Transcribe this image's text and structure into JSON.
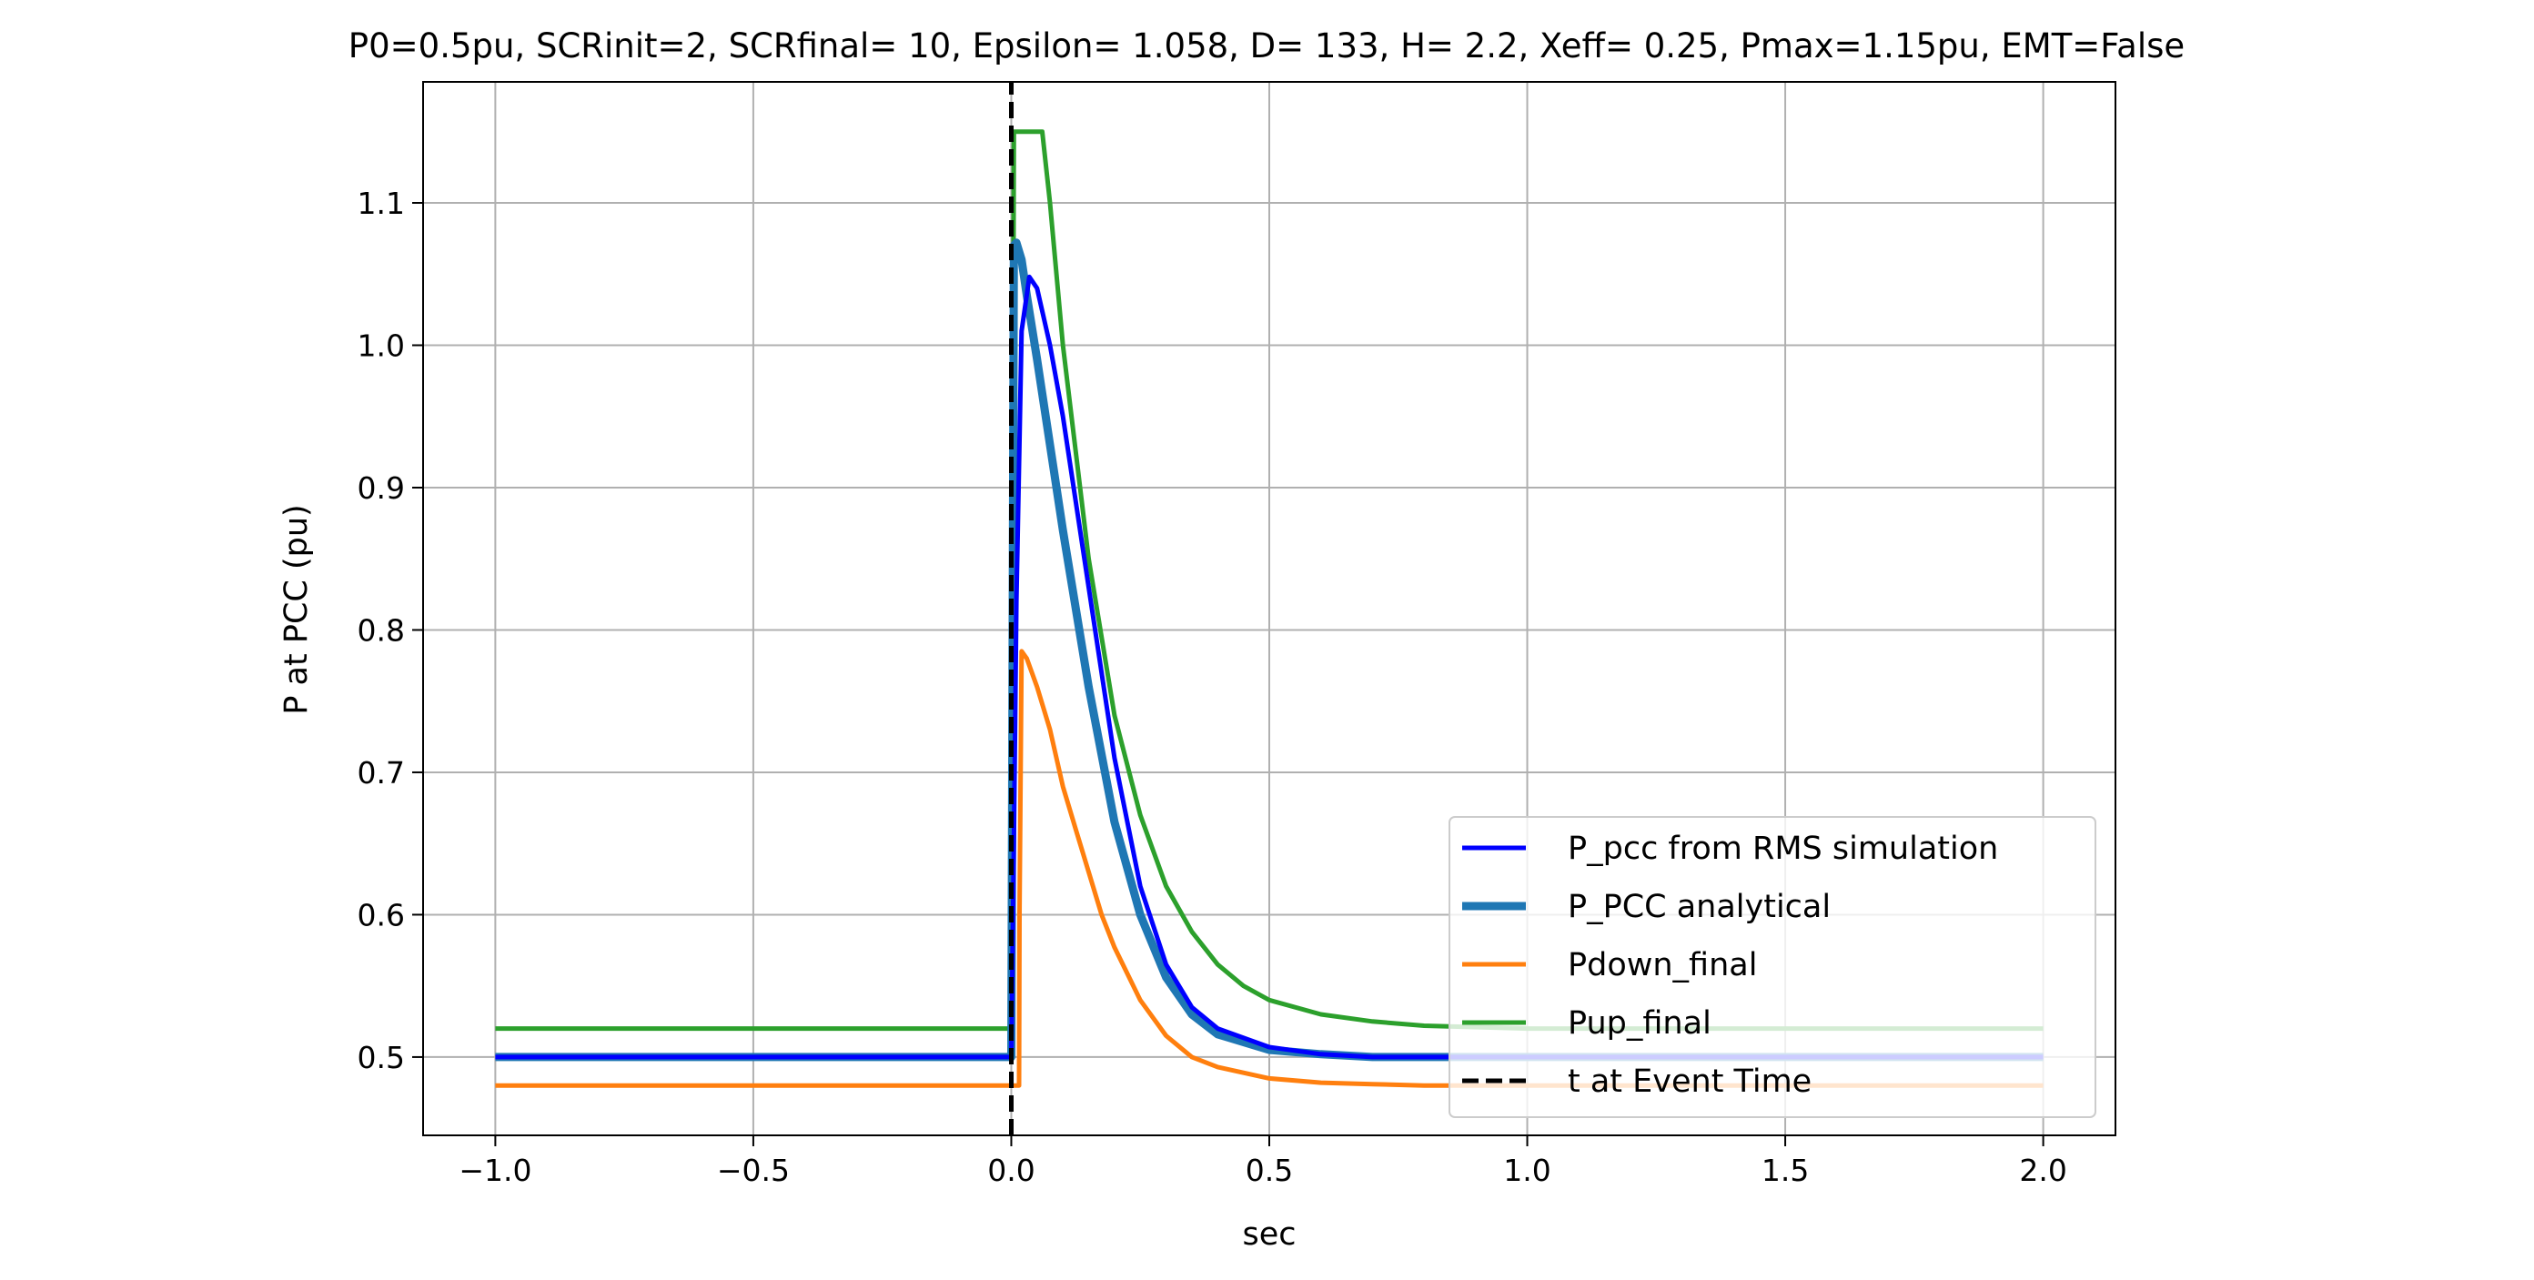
{
  "chart_data": {
    "type": "line",
    "title": "P0=0.5pu, SCRinit=2, SCRfinal= 10, Epsilon= 1.058, D= 133, H= 2.2, Xeff= 0.25, Pmax=1.15pu, EMT=False",
    "xlabel": "sec",
    "ylabel": "P at PCC (pu)",
    "xlim": [
      -1.14,
      2.14
    ],
    "ylim": [
      0.445,
      1.185
    ],
    "xticks": [
      -1.0,
      -0.5,
      0.0,
      0.5,
      1.0,
      1.5,
      2.0
    ],
    "xtick_labels": [
      "−1.0",
      "−0.5",
      "0.0",
      "0.5",
      "1.0",
      "1.5",
      "2.0"
    ],
    "yticks": [
      0.5,
      0.6,
      0.7,
      0.8,
      0.9,
      1.0,
      1.1
    ],
    "ytick_labels": [
      "0.5",
      "0.6",
      "0.7",
      "0.8",
      "0.9",
      "1.0",
      "1.1"
    ],
    "grid": true,
    "legend_position": "lower right",
    "series": [
      {
        "name": "P_pcc from RMS simulation",
        "color": "#0000ff",
        "style": "solid",
        "x": [
          -1.0,
          -0.001,
          0.0,
          0.005,
          0.01,
          0.02,
          0.035,
          0.05,
          0.075,
          0.1,
          0.15,
          0.2,
          0.25,
          0.3,
          0.35,
          0.4,
          0.5,
          0.6,
          0.7,
          0.8,
          1.0,
          1.5,
          2.0
        ],
        "y": [
          0.5,
          0.5,
          0.5,
          0.65,
          0.82,
          1.01,
          1.048,
          1.04,
          1.0,
          0.95,
          0.83,
          0.71,
          0.62,
          0.565,
          0.535,
          0.52,
          0.507,
          0.502,
          0.5,
          0.5,
          0.5,
          0.5,
          0.5
        ]
      },
      {
        "name": "P_PCC analytical",
        "color": "#1f77b4",
        "style": "solid",
        "x": [
          -1.0,
          -0.001,
          0.0,
          0.005,
          0.01,
          0.02,
          0.03,
          0.05,
          0.075,
          0.1,
          0.15,
          0.2,
          0.25,
          0.3,
          0.35,
          0.4,
          0.5,
          0.6,
          0.7,
          0.8,
          1.0,
          1.5,
          2.0
        ],
        "y": [
          0.5,
          0.5,
          0.5,
          1.07,
          1.072,
          1.06,
          1.035,
          0.99,
          0.93,
          0.87,
          0.76,
          0.665,
          0.6,
          0.556,
          0.53,
          0.516,
          0.505,
          0.502,
          0.5,
          0.5,
          0.5,
          0.5,
          0.5
        ]
      },
      {
        "name": "Pdown_final",
        "color": "#ff7f0e",
        "style": "solid",
        "x": [
          -1.0,
          0.015,
          0.016,
          0.02,
          0.03,
          0.05,
          0.075,
          0.1,
          0.125,
          0.15,
          0.175,
          0.2,
          0.25,
          0.3,
          0.35,
          0.4,
          0.5,
          0.6,
          0.7,
          0.8,
          1.0,
          1.5,
          2.0
        ],
        "y": [
          0.48,
          0.48,
          0.6,
          0.785,
          0.78,
          0.76,
          0.73,
          0.69,
          0.66,
          0.63,
          0.6,
          0.577,
          0.54,
          0.515,
          0.5,
          0.493,
          0.485,
          0.482,
          0.481,
          0.48,
          0.48,
          0.48,
          0.48
        ]
      },
      {
        "name": "Pup_final",
        "color": "#2ca02c",
        "style": "solid",
        "x": [
          -1.0,
          -0.001,
          0.0,
          0.005,
          0.06,
          0.075,
          0.1,
          0.15,
          0.2,
          0.25,
          0.3,
          0.35,
          0.4,
          0.45,
          0.5,
          0.6,
          0.7,
          0.8,
          1.0,
          1.5,
          2.0
        ],
        "y": [
          0.52,
          0.52,
          0.52,
          1.15,
          1.15,
          1.1,
          1.0,
          0.85,
          0.74,
          0.67,
          0.62,
          0.588,
          0.565,
          0.55,
          0.54,
          0.53,
          0.525,
          0.522,
          0.52,
          0.52,
          0.52
        ]
      },
      {
        "name": "t at Event Time",
        "color": "#000000",
        "style": "dashed",
        "x": [
          0.0,
          0.0
        ],
        "y": [
          0.445,
          1.185
        ]
      }
    ]
  }
}
